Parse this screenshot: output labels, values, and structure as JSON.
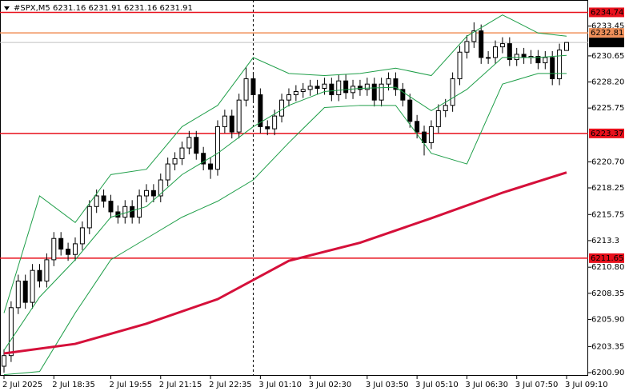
{
  "chart_data": {
    "type": "candlestick",
    "title": "#SPX,M5  6231.16 6231.91 6231.16 6231.91",
    "categories": [
      "2 Jul 2025",
      null,
      null,
      null,
      null,
      null,
      null,
      "2 Jul 18:35",
      null,
      null,
      null,
      null,
      null,
      null,
      null,
      "2 Jul 19:55",
      null,
      null,
      null,
      null,
      null,
      null,
      "2 Jul 21:15",
      null,
      null,
      null,
      null,
      null,
      null,
      "2 Jul 22:35",
      null,
      null,
      null,
      null,
      null,
      null,
      "3 Jul 01:10",
      null,
      null,
      null,
      null,
      null,
      null,
      "3 Jul 02:30",
      null,
      null,
      null,
      null,
      null,
      null,
      null,
      "3 Jul 03:50",
      null,
      null,
      null,
      null,
      null,
      null,
      "3 Jul 05:10",
      null,
      null,
      null,
      null,
      null,
      null,
      "3 Jul 06:30",
      null,
      null,
      null,
      null,
      null,
      null,
      "3 Jul 07:50",
      null,
      null,
      null,
      null,
      null,
      null,
      "3 Jul 09:10"
    ],
    "open": [
      6201.5,
      6202.5,
      6207,
      6209.5,
      6207.5,
      6210.5,
      6209.5,
      6211.5,
      6213.5,
      6212.5,
      6212.0,
      6213.0,
      6214.5,
      6216.5,
      6217.5,
      6217.0,
      6216.0,
      6215.5,
      6216.5,
      6215.5,
      6217.5,
      6218.0,
      6217.5,
      6219.0,
      6220.5,
      6221.0,
      6222.0,
      6223.0,
      6221.5,
      6220.5,
      6220.0,
      6224.0,
      6225.0,
      6223.5,
      6226.5,
      6228.5,
      6227.0,
      6224.0,
      6223.8,
      6225.0,
      6226.5,
      6227.0,
      6227.3,
      6227.5,
      6227.8,
      6227.6,
      6228.0,
      6227.0,
      6228.3,
      6227.2,
      6227.8,
      6227.5,
      6228.0,
      6226.5,
      6228.0,
      6228.5,
      6227.5,
      6226.5,
      6224.5,
      6223.5,
      6222.5,
      6224.0,
      6225.5,
      6226.0,
      6228.5,
      6231.0,
      6232.0,
      6233.0,
      6230.5,
      6230.5,
      6231.5,
      6231.8,
      6230.3,
      6230.8,
      6230.5,
      6230.6,
      6230.0,
      6230.5,
      6228.5,
      6231.16
    ],
    "high": [
      6203.1,
      6207.6,
      6210.1,
      6210.1,
      6211.1,
      6211.1,
      6212.1,
      6214.1,
      6214.1,
      6213.1,
      6213.6,
      6215.1,
      6217.1,
      6218.1,
      6218.1,
      6217.6,
      6216.6,
      6217.1,
      6217.1,
      6218.1,
      6218.6,
      6218.6,
      6219.6,
      6221.1,
      6221.6,
      6222.6,
      6223.6,
      6223.6,
      6222.1,
      6221.1,
      6224.6,
      6225.6,
      6225.6,
      6227.1,
      6229.6,
      6229.1,
      6227.6,
      6224.6,
      6225.6,
      6227.1,
      6227.6,
      6227.9,
      6228.1,
      6228.4,
      6228.4,
      6228.6,
      6228.6,
      6228.9,
      6228.9,
      6228.4,
      6228.4,
      6228.6,
      6228.6,
      6228.6,
      6229.1,
      6229.1,
      6228.1,
      6227.1,
      6225.1,
      6224.1,
      6224.6,
      6226.1,
      6226.6,
      6229.1,
      6231.6,
      6232.6,
      6233.8,
      6233.6,
      6231.1,
      6232.1,
      6232.4,
      6232.4,
      6231.4,
      6231.4,
      6231.2,
      6231.2,
      6231.1,
      6231.1,
      6231.8,
      6231.91
    ],
    "low": [
      6200.9,
      6201.9,
      6206.4,
      6206.9,
      6206.9,
      6208.9,
      6208.9,
      6210.9,
      6211.9,
      6211.4,
      6211.4,
      6212.4,
      6213.9,
      6215.9,
      6216.4,
      6215.4,
      6214.9,
      6214.9,
      6214.9,
      6214.9,
      6216.9,
      6216.9,
      6216.9,
      6218.4,
      6219.9,
      6220.4,
      6221.4,
      6220.9,
      6219.9,
      6219.1,
      6219.4,
      6223.4,
      6222.9,
      6222.9,
      6225.9,
      6226.4,
      6223.4,
      6223.2,
      6223.2,
      6224.4,
      6225.9,
      6226.4,
      6226.7,
      6226.9,
      6227.0,
      6227.0,
      6226.4,
      6226.4,
      6226.6,
      6226.6,
      6226.9,
      6226.9,
      6225.9,
      6225.9,
      6227.4,
      6226.9,
      6225.9,
      6223.9,
      6222.9,
      6221.3,
      6221.9,
      6223.4,
      6224.9,
      6225.4,
      6227.9,
      6230.4,
      6231.4,
      6229.9,
      6229.9,
      6229.9,
      6230.9,
      6229.7,
      6229.7,
      6229.9,
      6229.9,
      6229.4,
      6229.4,
      6227.9,
      6227.9,
      6231.16
    ],
    "close": [
      6202.5,
      6207,
      6209.5,
      6207.5,
      6210.5,
      6209.5,
      6211.5,
      6213.5,
      6212.5,
      6212.0,
      6213.0,
      6214.5,
      6216.5,
      6217.5,
      6217.0,
      6216.0,
      6215.5,
      6216.5,
      6215.5,
      6217.5,
      6218.0,
      6217.5,
      6219.0,
      6220.5,
      6221.0,
      6222.0,
      6223.0,
      6221.5,
      6220.5,
      6220.0,
      6224.0,
      6225.0,
      6223.5,
      6226.5,
      6228.5,
      6227.0,
      6224.0,
      6223.8,
      6225.0,
      6226.5,
      6227.0,
      6227.3,
      6227.5,
      6227.8,
      6227.6,
      6228.0,
      6227.0,
      6228.3,
      6227.2,
      6227.8,
      6227.5,
      6228.0,
      6226.5,
      6228.0,
      6228.5,
      6227.5,
      6226.5,
      6224.5,
      6223.5,
      6222.5,
      6224.0,
      6225.5,
      6226.0,
      6228.5,
      6231.0,
      6232.0,
      6233.0,
      6230.5,
      6230.5,
      6231.5,
      6231.8,
      6230.3,
      6230.8,
      6230.5,
      6230.6,
      6230.0,
      6230.5,
      6228.5,
      6231.2,
      6231.91
    ],
    "candle_color": "#000000",
    "indicators": [
      {
        "color": "#1e9e48",
        "width": 1,
        "x": [
          0,
          5,
          10,
          15,
          20,
          25,
          30,
          35,
          40,
          45,
          50,
          55,
          60,
          65,
          70,
          75,
          79
        ],
        "values": [
          6206.5,
          6217.5,
          6215.0,
          6219.5,
          6220.0,
          6224.0,
          6226.0,
          6230.5,
          6229.0,
          6228.8,
          6229.0,
          6229.5,
          6228.8,
          6232.5,
          6234.5,
          6232.8,
          6232.5
        ]
      },
      {
        "color": "#1e9e48",
        "width": 1,
        "x": [
          0,
          5,
          10,
          15,
          20,
          25,
          30,
          35,
          40,
          45,
          50,
          55,
          60,
          65,
          70,
          75,
          79
        ],
        "values": [
          6203.0,
          6208.0,
          6211.5,
          6215.5,
          6216.5,
          6219.5,
          6221.5,
          6224.0,
          6226.0,
          6227.3,
          6227.6,
          6227.7,
          6225.5,
          6227.5,
          6230.5,
          6230.5,
          6230.7
        ]
      },
      {
        "color": "#1e9e48",
        "width": 1,
        "x": [
          0,
          5,
          10,
          15,
          20,
          25,
          30,
          35,
          40,
          45,
          50,
          55,
          60,
          65,
          70,
          75,
          79
        ],
        "values": [
          6200.7,
          6201.0,
          6206.5,
          6211.5,
          6213.5,
          6215.5,
          6217.0,
          6219.0,
          6222.5,
          6225.8,
          6226.0,
          6226.0,
          6221.5,
          6220.5,
          6228.0,
          6229.0,
          6229.0
        ]
      },
      {
        "color": "#d5103a",
        "width": 3,
        "x": [
          0,
          10,
          20,
          30,
          40,
          50,
          60,
          70,
          79
        ],
        "values": [
          6202.7,
          6203.6,
          6205.5,
          6207.8,
          6211.4,
          6213.1,
          6215.4,
          6217.8,
          6219.7
        ]
      }
    ],
    "levels": [
      {
        "value": 6234.74,
        "color": "#e8101c"
      },
      {
        "value": 6232.81,
        "color": "#f0905a"
      },
      {
        "value": 6223.37,
        "color": "#e8101c"
      },
      {
        "value": 6211.65,
        "color": "#e8101c"
      }
    ],
    "current_price": {
      "value": 6231.91,
      "color": "#000000"
    },
    "separator_index": 35,
    "ylim": [
      6200.6,
      6235.9
    ],
    "yticks": [
      6233.45,
      6230.65,
      {
        "value": 6228.2,
        "label": "6228.20"
      },
      6225.75,
      {
        "value": 6220.7,
        "label": "6220.70"
      },
      6218.25,
      6215.75,
      6213.3,
      {
        "value": 6210.8,
        "label": "6210.80"
      },
      6208.35,
      {
        "value": 6205.9,
        "label": "6205.90"
      },
      6203.35,
      {
        "value": 6200.9,
        "label": "6200.90"
      }
    ]
  }
}
